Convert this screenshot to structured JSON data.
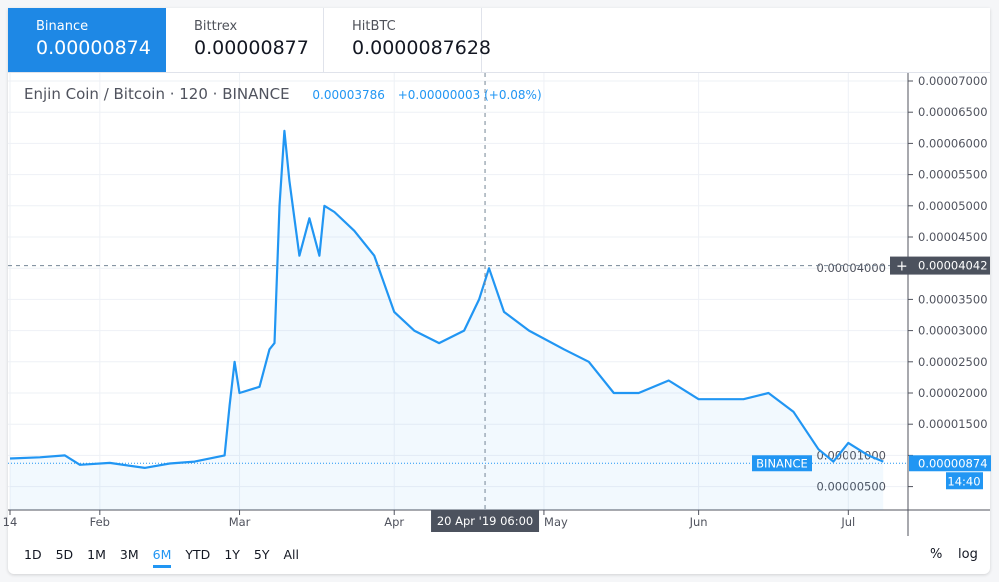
{
  "exchange_tabs": [
    {
      "name": "Binance",
      "price": "0.00000874",
      "active": true
    },
    {
      "name": "Bittrex",
      "price": "0.00000877",
      "active": false
    },
    {
      "name": "HitBTC",
      "price": "0.0000087628",
      "active": false
    }
  ],
  "legend": {
    "symbol": "Enjin Coin / Bitcoin",
    "interval": "120",
    "exchange": "BINANCE",
    "price": "0.00003786",
    "change": "+0.00000003 (+0.08%)"
  },
  "chart_data": {
    "type": "area",
    "y_ticks": [
      "0.00007000",
      "0.00006500",
      "0.00006000",
      "0.00005500",
      "0.00005000",
      "0.00004500",
      "0.00004000",
      "0.00003500",
      "0.00003000",
      "0.00002500",
      "0.00002000",
      "0.00001500",
      "0.00001000",
      "0.00000500"
    ],
    "x_ticks": [
      "14",
      "Feb",
      "Mar",
      "Apr",
      "May",
      "Jun",
      "Jul"
    ],
    "ylim": [
      3e-06,
      7e-05
    ],
    "crosshair": {
      "price": "0.00004042",
      "date": "20 Apr '19",
      "time": "06:00"
    },
    "last": {
      "label": "BINANCE",
      "price": "0.00000874",
      "countdown": "14:40"
    },
    "color": "#2196f3",
    "points": [
      [
        "2019-01-14",
        9.5e-06
      ],
      [
        "2019-01-20",
        9.7e-06
      ],
      [
        "2019-01-25",
        1e-05
      ],
      [
        "2019-01-28",
        8.5e-06
      ],
      [
        "2019-02-03",
        8.8e-06
      ],
      [
        "2019-02-10",
        8e-06
      ],
      [
        "2019-02-15",
        8.7e-06
      ],
      [
        "2019-02-20",
        9e-06
      ],
      [
        "2019-02-26",
        1e-05
      ],
      [
        "2019-02-27",
        1.8e-05
      ],
      [
        "2019-02-28",
        2.5e-05
      ],
      [
        "2019-03-01",
        2e-05
      ],
      [
        "2019-03-05",
        2.1e-05
      ],
      [
        "2019-03-07",
        2.7e-05
      ],
      [
        "2019-03-08",
        2.8e-05
      ],
      [
        "2019-03-09",
        5e-05
      ],
      [
        "2019-03-10",
        6.2e-05
      ],
      [
        "2019-03-11",
        5.4e-05
      ],
      [
        "2019-03-13",
        4.2e-05
      ],
      [
        "2019-03-15",
        4.8e-05
      ],
      [
        "2019-03-17",
        4.2e-05
      ],
      [
        "2019-03-18",
        5e-05
      ],
      [
        "2019-03-20",
        4.9e-05
      ],
      [
        "2019-03-24",
        4.6e-05
      ],
      [
        "2019-03-28",
        4.2e-05
      ],
      [
        "2019-04-01",
        3.3e-05
      ],
      [
        "2019-04-05",
        3e-05
      ],
      [
        "2019-04-10",
        2.8e-05
      ],
      [
        "2019-04-15",
        3e-05
      ],
      [
        "2019-04-18",
        3.5e-05
      ],
      [
        "2019-04-20",
        4e-05
      ],
      [
        "2019-04-23",
        3.3e-05
      ],
      [
        "2019-04-28",
        3e-05
      ],
      [
        "2019-05-05",
        2.7e-05
      ],
      [
        "2019-05-10",
        2.5e-05
      ],
      [
        "2019-05-15",
        2e-05
      ],
      [
        "2019-05-20",
        2e-05
      ],
      [
        "2019-05-26",
        2.2e-05
      ],
      [
        "2019-06-01",
        1.9e-05
      ],
      [
        "2019-06-10",
        1.9e-05
      ],
      [
        "2019-06-15",
        2e-05
      ],
      [
        "2019-06-20",
        1.7e-05
      ],
      [
        "2019-06-25",
        1.1e-05
      ],
      [
        "2019-06-28",
        9e-06
      ],
      [
        "2019-07-01",
        1.2e-05
      ],
      [
        "2019-07-05",
        1e-05
      ],
      [
        "2019-07-08",
        9e-06
      ]
    ]
  },
  "ranges": [
    "1D",
    "5D",
    "1M",
    "3M",
    "6M",
    "YTD",
    "1Y",
    "5Y",
    "All"
  ],
  "selected_range": "6M",
  "percent_label": "%",
  "log_label": "log"
}
